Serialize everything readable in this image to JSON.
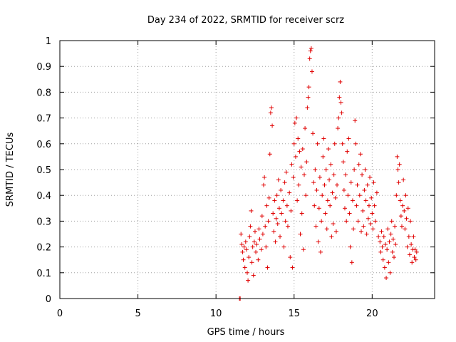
{
  "chart_data": {
    "type": "scatter",
    "title": "Day 234 of 2022, SRMTID for receiver scrz",
    "xlabel": "GPS time / hours",
    "ylabel": "SRMTID / TECUs",
    "xlim": [
      0,
      24
    ],
    "ylim": [
      0,
      1
    ],
    "xticks": [
      0,
      5,
      10,
      15,
      20
    ],
    "xtick_labels": [
      "0",
      "5",
      "10",
      "15",
      "20"
    ],
    "yticks": [
      0,
      0.1,
      0.2,
      0.3,
      0.4,
      0.5,
      0.6,
      0.7,
      0.8,
      0.9,
      1
    ],
    "ytick_labels": [
      "0",
      "0.1",
      "0.2",
      "0.3",
      "0.4",
      "0.5",
      "0.6",
      "0.7",
      "0.8",
      "0.9",
      "1"
    ],
    "grid": true,
    "marker": "+",
    "color": "#e00000",
    "series": [
      {
        "name": "SRMTID",
        "points": [
          [
            11.5,
            0.0
          ],
          [
            11.55,
            0.0
          ],
          [
            11.6,
            0.25
          ],
          [
            11.65,
            0.21
          ],
          [
            11.7,
            0.18
          ],
          [
            11.75,
            0.15
          ],
          [
            11.8,
            0.2
          ],
          [
            11.85,
            0.12
          ],
          [
            11.9,
            0.22
          ],
          [
            11.95,
            0.19
          ],
          [
            12.0,
            0.1
          ],
          [
            12.05,
            0.07
          ],
          [
            12.1,
            0.16
          ],
          [
            12.15,
            0.24
          ],
          [
            12.2,
            0.28
          ],
          [
            12.25,
            0.34
          ],
          [
            12.3,
            0.14
          ],
          [
            12.35,
            0.2
          ],
          [
            12.4,
            0.09
          ],
          [
            12.45,
            0.22
          ],
          [
            12.5,
            0.26
          ],
          [
            12.55,
            0.18
          ],
          [
            12.6,
            0.21
          ],
          [
            12.7,
            0.15
          ],
          [
            12.75,
            0.27
          ],
          [
            12.8,
            0.23
          ],
          [
            12.9,
            0.19
          ],
          [
            12.95,
            0.32
          ],
          [
            13.0,
            0.25
          ],
          [
            13.05,
            0.44
          ],
          [
            13.1,
            0.47
          ],
          [
            13.15,
            0.28
          ],
          [
            13.2,
            0.2
          ],
          [
            13.25,
            0.36
          ],
          [
            13.3,
            0.12
          ],
          [
            13.35,
            0.3
          ],
          [
            13.4,
            0.39
          ],
          [
            13.45,
            0.56
          ],
          [
            13.5,
            0.72
          ],
          [
            13.55,
            0.74
          ],
          [
            13.6,
            0.67
          ],
          [
            13.65,
            0.33
          ],
          [
            13.7,
            0.26
          ],
          [
            13.75,
            0.38
          ],
          [
            13.8,
            0.22
          ],
          [
            13.85,
            0.31
          ],
          [
            13.9,
            0.4
          ],
          [
            13.95,
            0.29
          ],
          [
            14.0,
            0.46
          ],
          [
            14.05,
            0.35
          ],
          [
            14.1,
            0.24
          ],
          [
            14.15,
            0.42
          ],
          [
            14.2,
            0.33
          ],
          [
            14.3,
            0.38
          ],
          [
            14.35,
            0.2
          ],
          [
            14.4,
            0.45
          ],
          [
            14.45,
            0.3
          ],
          [
            14.5,
            0.49
          ],
          [
            14.55,
            0.36
          ],
          [
            14.6,
            0.28
          ],
          [
            14.7,
            0.41
          ],
          [
            14.75,
            0.16
          ],
          [
            14.8,
            0.34
          ],
          [
            14.85,
            0.52
          ],
          [
            14.9,
            0.12
          ],
          [
            14.95,
            0.47
          ],
          [
            15.0,
            0.6
          ],
          [
            15.05,
            0.68
          ],
          [
            15.1,
            0.55
          ],
          [
            15.15,
            0.7
          ],
          [
            15.2,
            0.38
          ],
          [
            15.25,
            0.62
          ],
          [
            15.3,
            0.44
          ],
          [
            15.35,
            0.57
          ],
          [
            15.4,
            0.25
          ],
          [
            15.45,
            0.51
          ],
          [
            15.5,
            0.33
          ],
          [
            15.55,
            0.58
          ],
          [
            15.6,
            0.19
          ],
          [
            15.65,
            0.48
          ],
          [
            15.7,
            0.66
          ],
          [
            15.75,
            0.4
          ],
          [
            15.8,
            0.53
          ],
          [
            15.85,
            0.74
          ],
          [
            15.9,
            0.78
          ],
          [
            15.95,
            0.82
          ],
          [
            16.0,
            0.93
          ],
          [
            16.05,
            0.96
          ],
          [
            16.1,
            0.97
          ],
          [
            16.15,
            0.88
          ],
          [
            16.2,
            0.64
          ],
          [
            16.25,
            0.45
          ],
          [
            16.3,
            0.36
          ],
          [
            16.35,
            0.5
          ],
          [
            16.4,
            0.28
          ],
          [
            16.45,
            0.42
          ],
          [
            16.5,
            0.6
          ],
          [
            16.55,
            0.22
          ],
          [
            16.6,
            0.35
          ],
          [
            16.65,
            0.47
          ],
          [
            16.7,
            0.18
          ],
          [
            16.75,
            0.3
          ],
          [
            16.8,
            0.4
          ],
          [
            16.85,
            0.55
          ],
          [
            16.9,
            0.62
          ],
          [
            16.95,
            0.44
          ],
          [
            17.0,
            0.33
          ],
          [
            17.05,
            0.5
          ],
          [
            17.1,
            0.27
          ],
          [
            17.15,
            0.38
          ],
          [
            17.2,
            0.58
          ],
          [
            17.25,
            0.46
          ],
          [
            17.3,
            0.36
          ],
          [
            17.35,
            0.52
          ],
          [
            17.4,
            0.24
          ],
          [
            17.45,
            0.41
          ],
          [
            17.5,
            0.29
          ],
          [
            17.55,
            0.48
          ],
          [
            17.6,
            0.6
          ],
          [
            17.65,
            0.39
          ],
          [
            17.7,
            0.26
          ],
          [
            17.75,
            0.44
          ],
          [
            17.8,
            0.66
          ],
          [
            17.85,
            0.7
          ],
          [
            17.9,
            0.78
          ],
          [
            17.95,
            0.84
          ],
          [
            18.0,
            0.76
          ],
          [
            18.05,
            0.72
          ],
          [
            18.1,
            0.6
          ],
          [
            18.15,
            0.53
          ],
          [
            18.2,
            0.42
          ],
          [
            18.25,
            0.35
          ],
          [
            18.3,
            0.48
          ],
          [
            18.35,
            0.3
          ],
          [
            18.4,
            0.57
          ],
          [
            18.45,
            0.4
          ],
          [
            18.5,
            0.62
          ],
          [
            18.55,
            0.33
          ],
          [
            18.6,
            0.2
          ],
          [
            18.65,
            0.45
          ],
          [
            18.7,
            0.14
          ],
          [
            18.75,
            0.38
          ],
          [
            18.8,
            0.27
          ],
          [
            18.85,
            0.5
          ],
          [
            18.9,
            0.69
          ],
          [
            18.95,
            0.6
          ],
          [
            19.0,
            0.36
          ],
          [
            19.05,
            0.44
          ],
          [
            19.1,
            0.3
          ],
          [
            19.15,
            0.52
          ],
          [
            19.2,
            0.4
          ],
          [
            19.25,
            0.56
          ],
          [
            19.3,
            0.26
          ],
          [
            19.35,
            0.48
          ],
          [
            19.4,
            0.34
          ],
          [
            19.45,
            0.28
          ],
          [
            19.5,
            0.42
          ],
          [
            19.55,
            0.5
          ],
          [
            19.6,
            0.38
          ],
          [
            19.65,
            0.25
          ],
          [
            19.7,
            0.44
          ],
          [
            19.75,
            0.31
          ],
          [
            19.8,
            0.36
          ],
          [
            19.85,
            0.47
          ],
          [
            19.9,
            0.29
          ],
          [
            19.95,
            0.39
          ],
          [
            20.0,
            0.33
          ],
          [
            20.05,
            0.27
          ],
          [
            20.1,
            0.45
          ],
          [
            20.15,
            0.36
          ],
          [
            20.2,
            0.3
          ],
          [
            20.3,
            0.41
          ],
          [
            20.4,
            0.24
          ],
          [
            20.5,
            0.22
          ],
          [
            20.55,
            0.18
          ],
          [
            20.6,
            0.26
          ],
          [
            20.65,
            0.2
          ],
          [
            20.7,
            0.15
          ],
          [
            20.75,
            0.24
          ],
          [
            20.8,
            0.12
          ],
          [
            20.85,
            0.21
          ],
          [
            20.9,
            0.08
          ],
          [
            20.95,
            0.19
          ],
          [
            21.0,
            0.27
          ],
          [
            21.05,
            0.14
          ],
          [
            21.1,
            0.22
          ],
          [
            21.15,
            0.1
          ],
          [
            21.2,
            0.25
          ],
          [
            21.25,
            0.3
          ],
          [
            21.3,
            0.18
          ],
          [
            21.35,
            0.23
          ],
          [
            21.4,
            0.16
          ],
          [
            21.45,
            0.28
          ],
          [
            21.5,
            0.21
          ],
          [
            21.55,
            0.4
          ],
          [
            21.6,
            0.55
          ],
          [
            21.65,
            0.5
          ],
          [
            21.7,
            0.45
          ],
          [
            21.75,
            0.52
          ],
          [
            21.8,
            0.38
          ],
          [
            21.85,
            0.32
          ],
          [
            21.9,
            0.28
          ],
          [
            21.95,
            0.36
          ],
          [
            22.0,
            0.46
          ],
          [
            22.05,
            0.34
          ],
          [
            22.1,
            0.27
          ],
          [
            22.15,
            0.4
          ],
          [
            22.2,
            0.31
          ],
          [
            22.25,
            0.2
          ],
          [
            22.3,
            0.35
          ],
          [
            22.35,
            0.24
          ],
          [
            22.4,
            0.17
          ],
          [
            22.45,
            0.3
          ],
          [
            22.5,
            0.21
          ],
          [
            22.55,
            0.14
          ],
          [
            22.6,
            0.19
          ],
          [
            22.65,
            0.24
          ],
          [
            22.7,
            0.16
          ],
          [
            22.75,
            0.19
          ],
          [
            22.8,
            0.15
          ],
          [
            22.85,
            0.18
          ]
        ]
      }
    ]
  }
}
